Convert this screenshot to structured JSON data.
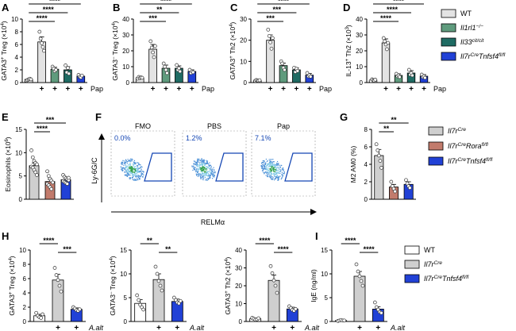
{
  "figure": {
    "colors": {
      "wt": "#e3e3e3",
      "il1rl1": "#5f9b7d",
      "il33": "#1f6b63",
      "il7r_tnfsf4": "#2141d6",
      "il7r_cre": "#cfcfcf",
      "il7r_rora": "#c27b6c",
      "white": "#ffffff",
      "facs_box": "#1446b4",
      "facs_text": "#1446b4"
    }
  },
  "panels": {
    "A": {
      "label": "A"
    },
    "B": {
      "label": "B"
    },
    "C": {
      "label": "C"
    },
    "D": {
      "label": "D"
    },
    "E": {
      "label": "E"
    },
    "F": {
      "label": "F"
    },
    "G": {
      "label": "G"
    },
    "H": {
      "label": "H"
    },
    "I": {
      "label": "I"
    }
  },
  "legends": {
    "top": [
      {
        "name": "WT",
        "prefix": "WT",
        "suffix": "",
        "color_key": "wt"
      },
      {
        "name": "Il1rl1-/-",
        "prefix": "Il1rl1",
        "suffix": "−/−",
        "color_key": "il1rl1"
      },
      {
        "name": "Il33cit/cit",
        "prefix": "Il33",
        "suffix": "cit/cit",
        "color_key": "il33"
      },
      {
        "name": "Il7rCreTnfsf4fl/fl",
        "prefix": "Il7r",
        "sup1": "Cre",
        "mid": "Tnfsf4",
        "suffix": "fl/fl",
        "color_key": "il7r_tnfsf4"
      }
    ],
    "middle": [
      {
        "name": "Il7rCre",
        "prefix": "Il7r",
        "suffix": "Cre",
        "color_key": "il7r_cre"
      },
      {
        "name": "Il7rCreRorafl/fl",
        "prefix": "Il7r",
        "sup1": "Cre",
        "mid": "Rora",
        "suffix": "fl/fl",
        "color_key": "il7r_rora"
      },
      {
        "name": "Il7rCreTnfsf4fl/fl",
        "prefix": "Il7r",
        "sup1": "Cre",
        "mid": "Tnfsf4",
        "suffix": "fl/fl",
        "color_key": "il7r_tnfsf4"
      }
    ],
    "bottom": [
      {
        "name": "WT",
        "prefix": "WT",
        "suffix": "",
        "color_key": "white"
      },
      {
        "name": "Il7rCre",
        "prefix": "Il7r",
        "suffix": "Cre",
        "color_key": "il7r_cre"
      },
      {
        "name": "Il7rCreTnfsf4fl/fl",
        "prefix": "Il7r",
        "sup1": "Cre",
        "mid": "Tnfsf4",
        "suffix": "fl/fl",
        "color_key": "il7r_tnfsf4"
      }
    ]
  },
  "facs": {
    "y_axis_label": "Ly-6G/C",
    "x_axis_label": "RELMα",
    "panes": [
      {
        "title": "FMO",
        "percent": "0.0%"
      },
      {
        "title": "PBS",
        "percent": "1.2%"
      },
      {
        "title": "Pap",
        "percent": "7.1%"
      }
    ]
  },
  "chart_data": [
    {
      "panel": "A",
      "type": "bar",
      "ylabel": "GATA3+ Treg (×10⁴)",
      "ylabel_main": "GATA3",
      "ylabel_sup": "+",
      "ylabel_rest": " Treg (×10",
      "ylabel_exp": "4",
      "ylabel_end": ")",
      "ylim": [
        0,
        10
      ],
      "yticks": [
        0,
        2,
        4,
        6,
        8,
        10
      ],
      "bars": [
        {
          "group": "WT",
          "treatment": "",
          "value": 0.5,
          "err": 0.1,
          "color_key": "wt",
          "points": [
            0.3,
            0.4,
            0.5,
            0.6,
            0.5
          ]
        },
        {
          "group": "WT",
          "treatment": "+",
          "value": 6.4,
          "err": 0.8,
          "color_key": "wt",
          "points": [
            8.0,
            6.9,
            6.2,
            5.6,
            5.0
          ]
        },
        {
          "group": "Il1rl1-/-",
          "treatment": "+",
          "value": 2.1,
          "err": 0.3,
          "color_key": "il1rl1",
          "points": [
            2.5,
            2.2,
            1.8,
            2.0
          ]
        },
        {
          "group": "Il33cit/cit",
          "treatment": "+",
          "value": 2.0,
          "err": 0.5,
          "color_key": "il33",
          "points": [
            2.7,
            1.6,
            2.3,
            1.4
          ]
        },
        {
          "group": "Il7rCreTnfsf4fl/fl",
          "treatment": "+",
          "value": 1.0,
          "err": 0.2,
          "color_key": "il7r_tnfsf4",
          "points": [
            1.2,
            0.9,
            0.8,
            1.1
          ]
        }
      ],
      "significance": [
        {
          "from": 0,
          "to": 4,
          "label": "****"
        },
        {
          "from": 0,
          "to": 3,
          "label": "****"
        },
        {
          "from": 0,
          "to": 2,
          "label": "****"
        }
      ],
      "treatment_label": "Pap"
    },
    {
      "panel": "B",
      "type": "bar",
      "ylabel": "GATA3- Treg (×10⁴)",
      "ylabel_main": "GATA3",
      "ylabel_sup": "−",
      "ylabel_rest": " Treg (×10",
      "ylabel_exp": "4",
      "ylabel_end": ")",
      "ylim": [
        0,
        40
      ],
      "yticks": [
        0,
        10,
        20,
        30,
        40
      ],
      "bars": [
        {
          "group": "WT",
          "treatment": "",
          "value": 3,
          "err": 0.5,
          "color_key": "wt",
          "points": [
            2.5,
            3.5,
            2.8,
            3.2,
            3.0
          ]
        },
        {
          "group": "WT",
          "treatment": "+",
          "value": 21,
          "err": 3,
          "color_key": "wt",
          "points": [
            26,
            22,
            19,
            16,
            23
          ]
        },
        {
          "group": "Il1rl1-/-",
          "treatment": "+",
          "value": 9,
          "err": 2,
          "color_key": "il1rl1",
          "points": [
            12,
            10,
            8,
            6
          ]
        },
        {
          "group": "Il33cit/cit",
          "treatment": "+",
          "value": 9,
          "err": 1.5,
          "color_key": "il33",
          "points": [
            11,
            8,
            9,
            7
          ]
        },
        {
          "group": "Il7rCreTnfsf4fl/fl",
          "treatment": "+",
          "value": 7,
          "err": 1,
          "color_key": "il7r_tnfsf4",
          "points": [
            8,
            6,
            7,
            6.5
          ]
        }
      ],
      "significance": [
        {
          "from": 0,
          "to": 4,
          "label": "****"
        },
        {
          "from": 0,
          "to": 3,
          "label": "**"
        },
        {
          "from": 0,
          "to": 2,
          "label": "***"
        }
      ],
      "treatment_label": "Pap"
    },
    {
      "panel": "C",
      "type": "bar",
      "ylabel": "GATA3+ Th2 (×10⁴)",
      "ylabel_main": "GATA3",
      "ylabel_sup": "+",
      "ylabel_rest": " Th2 (×10",
      "ylabel_exp": "4",
      "ylabel_end": ")",
      "ylim": [
        0,
        30
      ],
      "yticks": [
        0,
        10,
        20,
        30
      ],
      "bars": [
        {
          "group": "WT",
          "treatment": "",
          "value": 1,
          "err": 0.3,
          "color_key": "wt",
          "points": [
            0.8,
            1.2,
            1.0,
            0.9,
            1.1
          ]
        },
        {
          "group": "WT",
          "treatment": "+",
          "value": 20,
          "err": 2.5,
          "color_key": "wt",
          "points": [
            25,
            22,
            19,
            16,
            21
          ]
        },
        {
          "group": "Il1rl1-/-",
          "treatment": "+",
          "value": 8,
          "err": 1.2,
          "color_key": "il1rl1",
          "points": [
            10,
            9,
            7,
            6
          ]
        },
        {
          "group": "Il33cit/cit",
          "treatment": "+",
          "value": 6,
          "err": 1,
          "color_key": "il33",
          "points": [
            7,
            5,
            6.5,
            5.5
          ]
        },
        {
          "group": "Il7rCreTnfsf4fl/fl",
          "treatment": "+",
          "value": 3.5,
          "err": 0.8,
          "color_key": "il7r_tnfsf4",
          "points": [
            4.5,
            3,
            3.5,
            2.8
          ]
        }
      ],
      "significance": [
        {
          "from": 0,
          "to": 4,
          "label": "****"
        },
        {
          "from": 0,
          "to": 3,
          "label": "***"
        },
        {
          "from": 0,
          "to": 2,
          "label": "***"
        }
      ],
      "treatment_label": "Pap"
    },
    {
      "panel": "D",
      "type": "bar",
      "ylabel": "IL-13+ Th2 (×10³)",
      "ylabel_main": "IL-13",
      "ylabel_sup": "+",
      "ylabel_rest": " Th2 (×10",
      "ylabel_exp": "3",
      "ylabel_end": ")",
      "ylim": [
        0,
        40
      ],
      "yticks": [
        0,
        10,
        20,
        30,
        40
      ],
      "bars": [
        {
          "group": "WT",
          "treatment": "",
          "value": 1.5,
          "err": 0.4,
          "color_key": "wt",
          "points": [
            1.0,
            2.0,
            1.5,
            1.2,
            1.8
          ]
        },
        {
          "group": "WT",
          "treatment": "+",
          "value": 25,
          "err": 2.5,
          "color_key": "wt",
          "points": [
            28,
            26,
            24,
            21,
            25
          ]
        },
        {
          "group": "Il1rl1-/-",
          "treatment": "+",
          "value": 4.5,
          "err": 1,
          "color_key": "il1rl1",
          "points": [
            5.5,
            4,
            4.5,
            3.5
          ]
        },
        {
          "group": "Il33cit/cit",
          "treatment": "+",
          "value": 6,
          "err": 1.5,
          "color_key": "il33",
          "points": [
            8,
            5,
            6,
            4.5
          ]
        },
        {
          "group": "Il7rCreTnfsf4fl/fl",
          "treatment": "+",
          "value": 4,
          "err": 1,
          "color_key": "il7r_tnfsf4",
          "points": [
            5,
            3.5,
            4,
            3
          ]
        }
      ],
      "significance": [
        {
          "from": 0,
          "to": 4,
          "label": "****"
        },
        {
          "from": 0,
          "to": 3,
          "label": "****"
        },
        {
          "from": 0,
          "to": 2,
          "label": "****"
        }
      ],
      "treatment_label": "Pap"
    },
    {
      "panel": "E",
      "type": "bar",
      "ylabel": "Eosinophils (×10⁶)",
      "ylabel_main": "Eosinophils (×10",
      "ylabel_sup": "",
      "ylabel_rest": "",
      "ylabel_exp": "6",
      "ylabel_end": ")",
      "ylim": [
        0,
        15
      ],
      "yticks": [
        0,
        5,
        10,
        15
      ],
      "bars": [
        {
          "group": "Il7rCre",
          "treatment": "",
          "value": 7.2,
          "err": 0.6,
          "color_key": "il7r_cre",
          "points": [
            10.5,
            9.0,
            8.2,
            7.8,
            7.5,
            7.0,
            6.8,
            6.3,
            5.8,
            5.2
          ]
        },
        {
          "group": "Il7rCreRorafl/fl",
          "treatment": "",
          "value": 3.8,
          "err": 0.5,
          "color_key": "il7r_rora",
          "points": [
            6.0,
            5.0,
            4.4,
            4.0,
            3.6,
            3.3,
            3.0,
            2.6,
            2.2
          ]
        },
        {
          "group": "Il7rCreTnfsf4fl/fl",
          "treatment": "",
          "value": 4.2,
          "err": 0.3,
          "color_key": "il7r_tnfsf4",
          "points": [
            5.2,
            4.8,
            4.5,
            4.3,
            4.1,
            3.9,
            3.7,
            3.5,
            3.3,
            4.6
          ]
        }
      ],
      "significance": [
        {
          "from": 0,
          "to": 2,
          "label": "***"
        },
        {
          "from": 0,
          "to": 1,
          "label": "****"
        }
      ],
      "treatment_label": ""
    },
    {
      "panel": "G",
      "type": "bar",
      "ylabel": "M2 AM0 (%)",
      "ylabel_main": "M2 AM0 (%)",
      "ylabel_sup": "",
      "ylabel_rest": "",
      "ylabel_exp": "",
      "ylabel_end": "",
      "ylim": [
        0,
        8
      ],
      "yticks": [
        0,
        2,
        4,
        6,
        8
      ],
      "bars": [
        {
          "group": "Il7rCre",
          "treatment": "",
          "value": 5.0,
          "err": 0.7,
          "color_key": "il7r_cre",
          "points": [
            6.3,
            5.6,
            5.0,
            4.4,
            3.6
          ]
        },
        {
          "group": "Il7rCreRorafl/fl",
          "treatment": "",
          "value": 1.4,
          "err": 0.3,
          "color_key": "il7r_rora",
          "points": [
            2.0,
            1.5,
            1.2,
            0.9
          ]
        },
        {
          "group": "Il7rCreTnfsf4fl/fl",
          "treatment": "",
          "value": 1.7,
          "err": 0.3,
          "color_key": "il7r_tnfsf4",
          "points": [
            2.2,
            1.8,
            1.5,
            1.3
          ]
        }
      ],
      "significance": [
        {
          "from": 0,
          "to": 2,
          "label": "**"
        },
        {
          "from": 0,
          "to": 1,
          "label": "**"
        }
      ],
      "treatment_label": ""
    },
    {
      "panel": "H1",
      "type": "bar",
      "ylabel": "GATA3+ Treg (×10⁴)",
      "ylabel_main": "GATA3",
      "ylabel_sup": "+",
      "ylabel_rest": " Treg (×10",
      "ylabel_exp": "4",
      "ylabel_end": ")",
      "ylim": [
        0,
        10
      ],
      "yticks": [
        0,
        2,
        4,
        6,
        8,
        10
      ],
      "bars": [
        {
          "group": "WT",
          "treatment": "",
          "value": 0.8,
          "err": 0.2,
          "color_key": "white",
          "points": [
            1.2,
            0.8,
            0.6,
            0.5,
            1.0
          ]
        },
        {
          "group": "Il7rCre",
          "treatment": "+",
          "value": 5.8,
          "err": 0.8,
          "color_key": "il7r_cre",
          "points": [
            7.5,
            6.5,
            5.8,
            5.0,
            4.2
          ]
        },
        {
          "group": "Il7rCreTnfsf4fl/fl",
          "treatment": "+",
          "value": 1.7,
          "err": 0.2,
          "color_key": "il7r_tnfsf4",
          "points": [
            2.0,
            1.8,
            1.6,
            1.5,
            1.7
          ]
        }
      ],
      "significance": [
        {
          "from": 0,
          "to": 1,
          "label": "****"
        },
        {
          "from": 1,
          "to": 2,
          "label": "***"
        }
      ],
      "treatment_label": "A.alt"
    },
    {
      "panel": "H2",
      "type": "bar",
      "ylabel": "GATA3- Treg (×10⁴)",
      "ylabel_main": "GATA3",
      "ylabel_sup": "−",
      "ylabel_rest": " Treg (×10",
      "ylabel_exp": "4",
      "ylabel_end": ")",
      "ylim": [
        0,
        15
      ],
      "yticks": [
        0,
        5,
        10,
        15
      ],
      "bars": [
        {
          "group": "WT",
          "treatment": "",
          "value": 3.8,
          "err": 0.8,
          "color_key": "white",
          "points": [
            5.5,
            4.5,
            3.5,
            3.0,
            2.5
          ]
        },
        {
          "group": "Il7rCre",
          "treatment": "+",
          "value": 8.8,
          "err": 1.2,
          "color_key": "il7r_cre",
          "points": [
            11.5,
            10.0,
            8.5,
            7.5,
            6.5
          ]
        },
        {
          "group": "Il7rCreTnfsf4fl/fl",
          "treatment": "+",
          "value": 4.2,
          "err": 0.5,
          "color_key": "il7r_tnfsf4",
          "points": [
            5.0,
            4.5,
            4.0,
            3.8,
            4.3
          ]
        }
      ],
      "significance": [
        {
          "from": 0,
          "to": 1,
          "label": "**"
        },
        {
          "from": 1,
          "to": 2,
          "label": "**"
        }
      ],
      "treatment_label": "A.alt"
    },
    {
      "panel": "H3",
      "type": "bar",
      "ylabel": "GATA3+ Th2 (×10⁴)",
      "ylabel_main": "GATA3",
      "ylabel_sup": "+",
      "ylabel_rest": " Th2 (×10",
      "ylabel_exp": "4",
      "ylabel_end": ")",
      "ylim": [
        0,
        40
      ],
      "yticks": [
        0,
        10,
        20,
        30,
        40
      ],
      "bars": [
        {
          "group": "WT",
          "treatment": "",
          "value": 1.5,
          "err": 0.4,
          "color_key": "white",
          "points": [
            2.0,
            1.5,
            1.0,
            1.2,
            1.8
          ]
        },
        {
          "group": "Il7rCre",
          "treatment": "+",
          "value": 23,
          "err": 3,
          "color_key": "il7r_cre",
          "points": [
            31,
            27,
            23,
            20,
            16
          ]
        },
        {
          "group": "Il7rCreTnfsf4fl/fl",
          "treatment": "+",
          "value": 7,
          "err": 1,
          "color_key": "il7r_tnfsf4",
          "points": [
            8.5,
            7.5,
            6.5,
            6.0,
            7.0
          ]
        }
      ],
      "significance": [
        {
          "from": 0,
          "to": 1,
          "label": "****"
        },
        {
          "from": 1,
          "to": 2,
          "label": "****"
        }
      ],
      "treatment_label": "A.alt"
    },
    {
      "panel": "I",
      "type": "bar",
      "ylabel": "IgE (ng/ml)",
      "ylabel_main": "IgE (ng/ml)",
      "ylabel_sup": "",
      "ylabel_rest": "",
      "ylabel_exp": "",
      "ylabel_end": "",
      "ylim": [
        0,
        15
      ],
      "yticks": [
        0,
        5,
        10,
        15
      ],
      "bars": [
        {
          "group": "WT",
          "treatment": "",
          "value": 0.2,
          "err": 0.05,
          "color_key": "white",
          "points": [
            0.1,
            0.2,
            0.3,
            0.2,
            0.2
          ]
        },
        {
          "group": "Il7rCre",
          "treatment": "+",
          "value": 9.5,
          "err": 1.0,
          "color_key": "il7r_cre",
          "points": [
            12.0,
            10.5,
            9.5,
            8.5,
            7.5
          ]
        },
        {
          "group": "Il7rCreTnfsf4fl/fl",
          "treatment": "+",
          "value": 2.6,
          "err": 0.5,
          "color_key": "il7r_tnfsf4",
          "points": [
            4.0,
            3.0,
            2.5,
            2.0,
            1.8
          ]
        }
      ],
      "significance": [
        {
          "from": 0,
          "to": 1,
          "label": "****"
        },
        {
          "from": 1,
          "to": 2,
          "label": "****"
        }
      ],
      "treatment_label": "A.alt"
    }
  ]
}
